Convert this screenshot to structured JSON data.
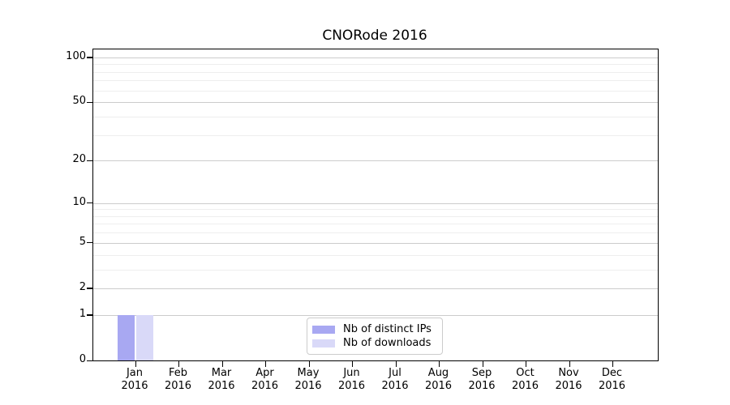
{
  "chart_data": {
    "type": "bar",
    "title": "CNORode 2016",
    "categories": [
      "Jan",
      "Feb",
      "Mar",
      "Apr",
      "May",
      "Jun",
      "Jul",
      "Aug",
      "Sep",
      "Oct",
      "Nov",
      "Dec"
    ],
    "category_year": "2016",
    "series": [
      {
        "name": "Nb of distinct IPs",
        "color": "#a8a8f2",
        "values": [
          1,
          0,
          0,
          0,
          0,
          0,
          0,
          0,
          0,
          0,
          0,
          0
        ]
      },
      {
        "name": "Nb of downloads",
        "color": "#d9d9f8",
        "values": [
          1,
          0,
          0,
          0,
          0,
          0,
          0,
          0,
          0,
          0,
          0,
          0
        ]
      }
    ],
    "xlabel": "",
    "ylabel": "",
    "yscale": "log1p",
    "ylim": [
      0,
      113
    ],
    "yticks": [
      0,
      1,
      2,
      5,
      10,
      20,
      50,
      100
    ],
    "yticks_minor": [
      3,
      4,
      6,
      7,
      8,
      9,
      30,
      40,
      60,
      70,
      80,
      90
    ],
    "grid": true,
    "legend_position": "lower-center",
    "colors": {
      "grid_major": "#cccccc",
      "grid_minor": "#eeeeee",
      "spine": "#000000",
      "background": "#ffffff"
    }
  }
}
